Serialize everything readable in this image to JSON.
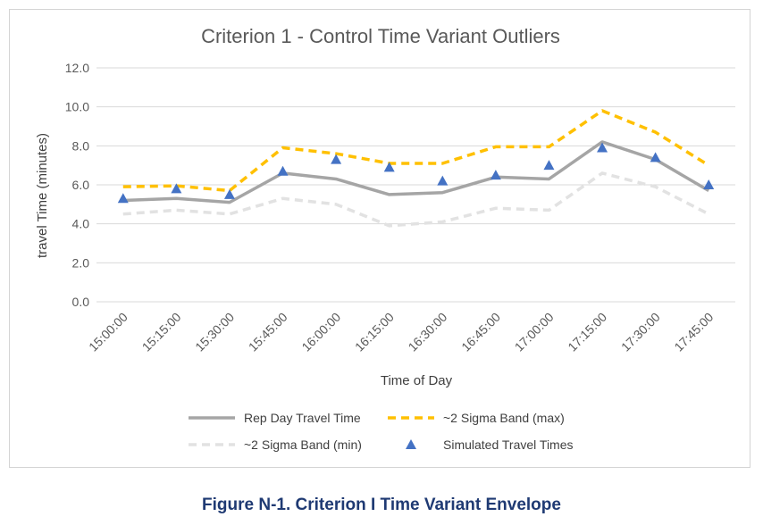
{
  "chart_data": {
    "type": "line",
    "title": "Criterion 1 - Control Time Variant Outliers",
    "xlabel": "Time of Day",
    "ylabel": "travel Time (minutes)",
    "ylim": [
      0,
      12
    ],
    "yticks": [
      "0.0",
      "2.0",
      "4.0",
      "6.0",
      "8.0",
      "10.0",
      "12.0"
    ],
    "grid": true,
    "legend_position": "bottom",
    "categories": [
      "15:00:00",
      "15:15:00",
      "15:30:00",
      "15:45:00",
      "16:00:00",
      "16:15:00",
      "16:30:00",
      "16:45:00",
      "17:00:00",
      "17:15:00",
      "17:30:00",
      "17:45:00"
    ],
    "series": [
      {
        "name": "Rep Day Travel Time",
        "style": "solid",
        "color": "#a5a5a5",
        "values": [
          5.2,
          5.3,
          5.1,
          6.6,
          6.3,
          5.5,
          5.6,
          6.4,
          6.3,
          8.2,
          7.3,
          5.7
        ]
      },
      {
        "name": "~2 Sigma Band (max)",
        "style": "dashed",
        "color": "#ffc000",
        "values": [
          5.9,
          5.95,
          5.7,
          7.9,
          7.6,
          7.1,
          7.1,
          7.95,
          7.95,
          9.8,
          8.7,
          7.0
        ]
      },
      {
        "name": "~2 Sigma Band (min)",
        "style": "dashed",
        "color": "#e2e2e2",
        "values": [
          4.5,
          4.7,
          4.5,
          5.3,
          5.0,
          3.9,
          4.1,
          4.8,
          4.7,
          6.6,
          5.9,
          4.5
        ]
      },
      {
        "name": "Simulated Travel Times",
        "style": "marker",
        "color": "#4472c4",
        "values": [
          5.3,
          5.8,
          5.5,
          6.7,
          7.3,
          6.9,
          6.2,
          6.5,
          7.0,
          7.9,
          7.4,
          6.0
        ]
      }
    ]
  },
  "caption": "Figure N-1. Criterion I Time Variant Envelope"
}
